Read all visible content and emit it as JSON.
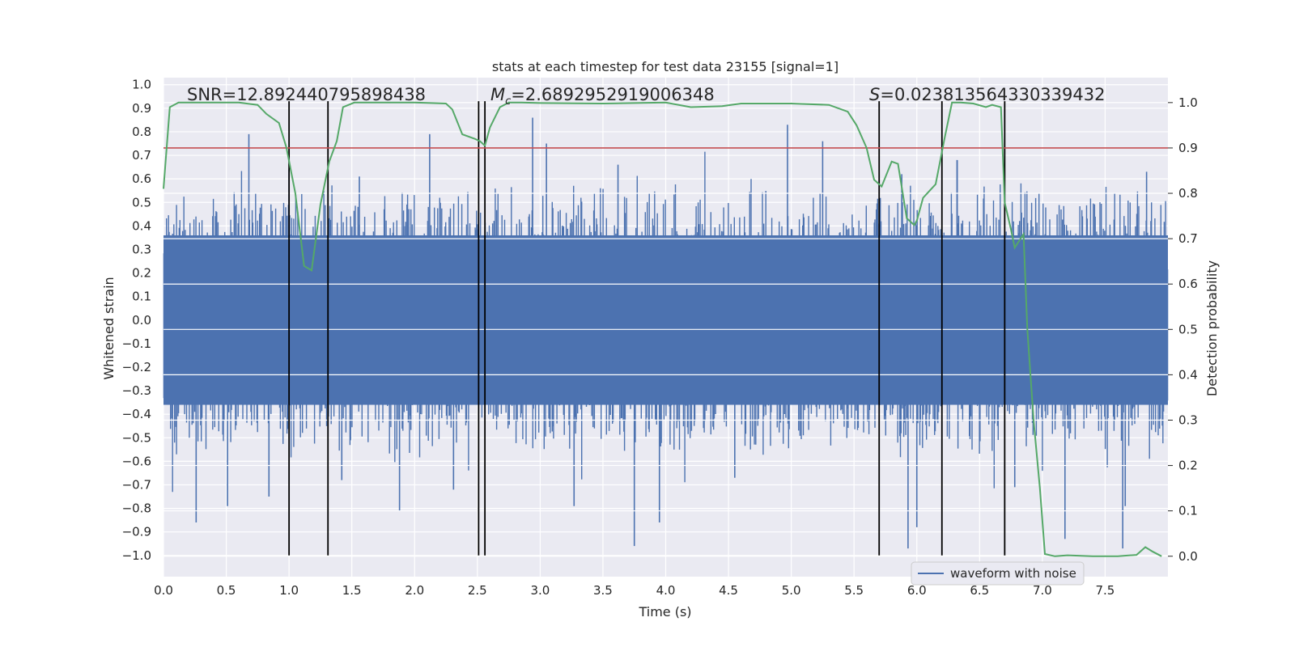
{
  "chart_data": {
    "type": "line",
    "title": "stats at each timestep for test data 23155 [signal=1]",
    "xlabel": "Time (s)",
    "ylabel_left": "Whitened strain",
    "ylabel_right": "Detection probability",
    "xlim": [
      0.0,
      8.0
    ],
    "ylim_left": [
      -1.09,
      1.03
    ],
    "ylim_right": [
      -0.045,
      1.055
    ],
    "x_ticks": [
      "0.0",
      "0.5",
      "1.0",
      "1.5",
      "2.0",
      "2.5",
      "3.0",
      "3.5",
      "4.0",
      "4.5",
      "5.0",
      "5.5",
      "6.0",
      "6.5",
      "7.0",
      "7.5"
    ],
    "y_ticks_left": [
      "1.0",
      "0.9",
      "0.8",
      "0.7",
      "0.6",
      "0.5",
      "0.4",
      "0.3",
      "0.2",
      "0.1",
      "0.0",
      "-0.1",
      "-0.2",
      "-0.3",
      "-0.4",
      "-0.5",
      "-0.6",
      "-0.7",
      "-0.8",
      "-0.9",
      "-1.0"
    ],
    "y_ticks_right": [
      "1.0",
      "0.9",
      "0.8",
      "0.7",
      "0.6",
      "0.5",
      "0.4",
      "0.3",
      "0.2",
      "0.1",
      "0.0"
    ],
    "annotations": {
      "snr_prefix": "SNR=",
      "snr_value": "12.892440795898438",
      "mc_symbol": "M",
      "mc_subscript": "c",
      "mc_value": "=2.6892952919006348",
      "s_symbol": "S",
      "s_value": "=0.023813564330339432"
    },
    "threshold": 0.9,
    "vertical_markers": [
      1.0,
      1.31,
      2.51,
      2.56,
      5.7,
      6.2,
      6.7
    ],
    "legend": {
      "label": "waveform with noise",
      "position": "lower-right"
    },
    "series": [
      {
        "name": "waveform with noise",
        "color": "#4c72b0",
        "description": "noisy whitened strain, roughly +/-0.35 dense band with spikes up to about +/-1.0",
        "band": 0.36,
        "spikes_up": [
          [
            0.68,
            0.79
          ],
          [
            1.0,
            0.64
          ],
          [
            2.12,
            0.79
          ],
          [
            2.94,
            0.86
          ],
          [
            3.05,
            0.75
          ],
          [
            4.97,
            0.83
          ],
          [
            5.25,
            0.76
          ],
          [
            1.56,
            0.61
          ],
          [
            3.62,
            0.66
          ],
          [
            5.88,
            0.62
          ],
          [
            6.32,
            0.68
          ],
          [
            7.83,
            0.63
          ]
        ],
        "spikes_down": [
          [
            0.26,
            -0.86
          ],
          [
            0.51,
            -0.79
          ],
          [
            0.84,
            -0.75
          ],
          [
            1.88,
            -0.81
          ],
          [
            3.27,
            -0.79
          ],
          [
            3.75,
            -0.96
          ],
          [
            3.95,
            -0.86
          ],
          [
            5.93,
            -0.97
          ],
          [
            6.0,
            -0.88
          ],
          [
            7.18,
            -0.93
          ],
          [
            7.64,
            -0.97
          ],
          [
            7.66,
            -0.79
          ],
          [
            1.42,
            -0.68
          ],
          [
            2.31,
            -0.72
          ],
          [
            4.55,
            -0.67
          ],
          [
            6.78,
            -0.71
          ]
        ]
      },
      {
        "name": "detection probability",
        "color": "#55a868",
        "axis": "right",
        "x": [
          0.0,
          0.05,
          0.12,
          0.2,
          0.6,
          0.75,
          0.82,
          0.92,
          0.98,
          1.05,
          1.12,
          1.18,
          1.25,
          1.32,
          1.38,
          1.43,
          1.52,
          1.6,
          2.0,
          2.25,
          2.3,
          2.38,
          2.48,
          2.52,
          2.56,
          2.6,
          2.68,
          2.75,
          2.85,
          3.0,
          3.5,
          4.0,
          4.2,
          4.45,
          4.6,
          5.0,
          5.3,
          5.45,
          5.52,
          5.6,
          5.66,
          5.72,
          5.8,
          5.85,
          5.92,
          5.98,
          6.0,
          6.05,
          6.15,
          6.22,
          6.28,
          6.35,
          6.45,
          6.55,
          6.6,
          6.67,
          6.7,
          6.75,
          6.78,
          6.85,
          6.88,
          6.93,
          6.98,
          7.02,
          7.1,
          7.2,
          7.4,
          7.6,
          7.75,
          7.82,
          7.88,
          7.95
        ],
        "y": [
          0.81,
          0.99,
          1.0,
          1.0,
          1.0,
          0.995,
          0.975,
          0.955,
          0.9,
          0.8,
          0.64,
          0.63,
          0.775,
          0.87,
          0.915,
          0.99,
          1.0,
          1.0,
          1.0,
          0.998,
          0.985,
          0.93,
          0.92,
          0.915,
          0.905,
          0.945,
          0.99,
          1.0,
          1.0,
          0.999,
          0.998,
          1.0,
          0.99,
          0.992,
          0.998,
          0.998,
          0.995,
          0.98,
          0.95,
          0.9,
          0.83,
          0.815,
          0.87,
          0.865,
          0.745,
          0.73,
          0.74,
          0.79,
          0.82,
          0.92,
          1.0,
          1.0,
          0.998,
          0.99,
          0.995,
          0.99,
          0.78,
          0.72,
          0.68,
          0.71,
          0.5,
          0.3,
          0.15,
          0.005,
          0.0,
          0.002,
          0.0,
          0.0,
          0.003,
          0.02,
          0.01,
          0.0
        ]
      },
      {
        "name": "threshold",
        "color": "#c44e52",
        "axis": "right",
        "y": 0.9
      }
    ]
  }
}
